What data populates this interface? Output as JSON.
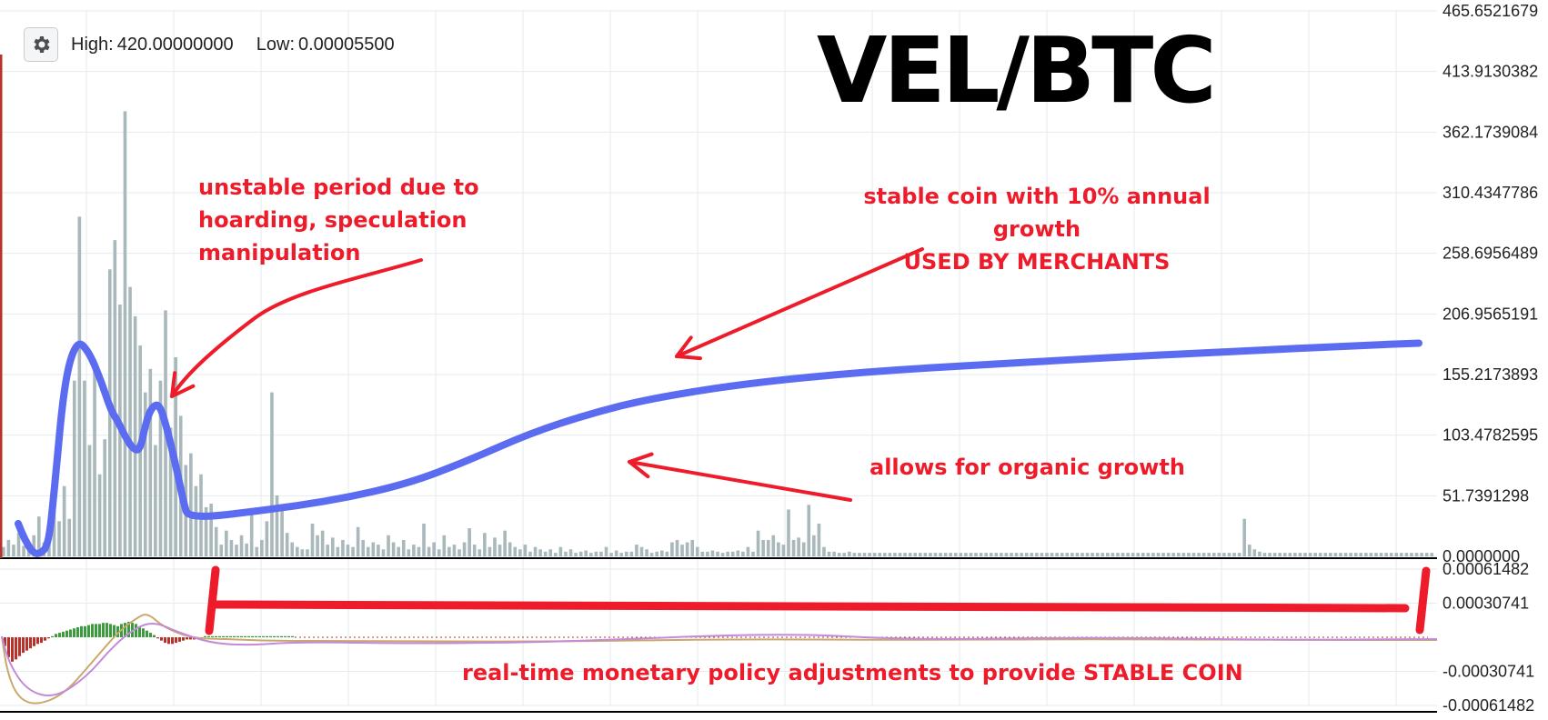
{
  "header": {
    "settings_icon": "gear-icon",
    "high_label": "High:",
    "high_value": "420.00000000",
    "low_label": "Low:",
    "low_value": "0.00005500"
  },
  "title": "VEL/BTC",
  "annotations": {
    "unstable": [
      "unstable period due to",
      "hoarding, speculation",
      "manipulation"
    ],
    "stable": [
      "stable coin with 10% annual growth",
      "USED BY MERCHANTS"
    ],
    "organic": "allows for organic growth",
    "policy": "real-time monetary policy adjustments to provide STABLE COIN"
  },
  "colors": {
    "annotation": "#ee1c2a",
    "trend_line": "#5b6cf0",
    "volume_bar": "#a9b8bb",
    "grid": "#e6ebee",
    "macd_positive": "#3c9b3c",
    "macd_negative": "#b8322a",
    "macd_line": "#c8a86c",
    "signal_line": "#c48ad8"
  },
  "chart_data": [
    {
      "type": "bar",
      "name": "price-volume",
      "y_ticks": [
        "465.6521679",
        "413.9130382",
        "362.1739084",
        "310.4347786",
        "258.6956489",
        "206.9565191",
        "155.2173893",
        "103.4782595",
        "51.7391298",
        "0.0000000"
      ],
      "ylim": [
        0,
        465.6521679
      ],
      "bars": [
        8,
        14,
        10,
        20,
        9,
        6,
        18,
        34,
        12,
        26,
        48,
        30,
        60,
        32,
        150,
        290,
        150,
        95,
        160,
        70,
        100,
        245,
        270,
        215,
        380,
        230,
        205,
        180,
        140,
        160,
        95,
        150,
        210,
        110,
        170,
        120,
        78,
        88,
        60,
        70,
        42,
        45,
        25,
        10,
        22,
        14,
        10,
        18,
        11,
        38,
        8,
        14,
        30,
        140,
        52,
        44,
        20,
        12,
        8,
        6,
        6,
        28,
        18,
        22,
        10,
        16,
        8,
        14,
        10,
        8,
        25,
        14,
        8,
        12,
        10,
        6,
        18,
        12,
        8,
        14,
        6,
        10,
        8,
        28,
        8,
        12,
        6,
        18,
        8,
        10,
        6,
        12,
        24,
        10,
        6,
        20,
        8,
        16,
        10,
        22,
        12,
        8,
        6,
        10,
        4,
        8,
        6,
        4,
        6,
        3,
        8,
        4,
        6,
        3,
        4,
        5,
        3,
        4,
        4,
        8,
        3,
        5,
        3,
        4,
        4,
        10,
        8,
        6,
        3,
        4,
        5,
        4,
        12,
        14,
        10,
        12,
        14,
        8,
        4,
        4,
        5,
        4,
        3,
        4,
        4,
        5,
        4,
        8,
        4,
        22,
        14,
        14,
        18,
        12,
        10,
        40,
        14,
        16,
        12,
        44,
        18,
        28,
        8,
        4,
        4,
        3,
        3,
        4,
        3,
        3,
        3,
        3,
        3,
        3,
        3,
        3,
        3,
        3,
        3,
        3,
        3,
        3,
        3,
        3,
        3,
        3,
        3,
        3,
        3,
        3,
        3,
        3,
        3,
        3,
        3,
        3,
        3,
        3,
        3,
        3,
        3,
        3,
        3,
        3,
        3,
        3,
        3,
        3,
        3,
        3,
        3,
        3,
        3,
        3,
        3,
        3,
        3,
        3,
        3,
        3,
        3,
        3,
        3,
        3,
        3,
        3,
        3,
        3,
        3,
        3,
        3,
        3,
        3,
        3,
        3,
        3,
        3,
        3,
        3,
        3,
        3,
        3,
        3,
        3,
        3,
        32,
        10,
        6,
        4,
        3,
        3,
        3,
        3,
        3,
        3,
        3,
        3,
        3,
        3,
        3,
        3,
        3,
        3,
        3,
        3,
        3,
        3,
        3,
        3,
        3,
        3,
        3,
        3,
        3,
        3,
        3,
        3,
        3,
        3,
        3,
        3,
        3,
        3
      ]
    },
    {
      "type": "line",
      "name": "trend",
      "points": [
        [
          0,
          28
        ],
        [
          5,
          15
        ],
        [
          12,
          3
        ],
        [
          18,
          2
        ],
        [
          25,
          10
        ],
        [
          30,
          60
        ],
        [
          38,
          150
        ],
        [
          48,
          185
        ],
        [
          58,
          175
        ],
        [
          68,
          150
        ],
        [
          76,
          125
        ],
        [
          82,
          115
        ],
        [
          88,
          102
        ],
        [
          94,
          92
        ],
        [
          100,
          90
        ],
        [
          105,
          115
        ],
        [
          110,
          128
        ],
        [
          116,
          130
        ],
        [
          122,
          110
        ],
        [
          130,
          75
        ],
        [
          136,
          45
        ],
        [
          140,
          32
        ],
        [
          200,
          39
        ],
        [
          260,
          48
        ],
        [
          320,
          62
        ],
        [
          370,
          82
        ],
        [
          420,
          105
        ],
        [
          470,
          122
        ],
        [
          520,
          135
        ],
        [
          600,
          148
        ],
        [
          700,
          158
        ],
        [
          800,
          164
        ],
        [
          900,
          170
        ],
        [
          1000,
          175
        ],
        [
          1100,
          180
        ],
        [
          1150,
          182
        ]
      ]
    },
    {
      "type": "bar",
      "name": "macd",
      "y_ticks": [
        "0.00061482",
        "0.00030741",
        "-0.00030741",
        "-0.00061482"
      ],
      "ylim": [
        -0.00061482,
        0.00061482
      ],
      "histogram": [
        -8e-05,
        -0.00018,
        -0.00022,
        -0.0002,
        -0.00017,
        -0.00014,
        -0.00012,
        -0.0001,
        -8e-05,
        -6e-05,
        -5e-05,
        -3e-05,
        -1e-05,
        1e-05,
        3e-05,
        4e-05,
        5e-05,
        6e-05,
        7e-05,
        8e-05,
        9e-05,
        0.0001,
        0.0001,
        0.00011,
        0.00012,
        0.00012,
        0.00012,
        0.00013,
        0.00013,
        0.00012,
        0.00011,
        0.0001,
        0.00012,
        0.00013,
        0.00014,
        0.00013,
        0.00012,
        0.0001,
        8e-05,
        6e-05,
        4e-05,
        2e-05,
        -1e-05,
        -3e-05,
        -5e-05,
        -6e-05,
        -6e-05,
        -5e-05,
        -4e-05,
        -3e-05,
        -2e-05,
        -2e-05,
        -2e-05,
        -1e-05,
        -1e-05,
        1e-05,
        1e-05,
        1e-05,
        1e-05,
        1e-05,
        1e-05,
        1e-05,
        1e-05,
        1e-05,
        1e-05,
        1e-05,
        1e-05,
        1e-05,
        1e-05,
        1e-05,
        1e-05,
        1e-05,
        1e-05,
        1e-05,
        1e-05,
        1e-05,
        1e-05,
        1e-05,
        1e-05,
        1e-05
      ]
    }
  ]
}
